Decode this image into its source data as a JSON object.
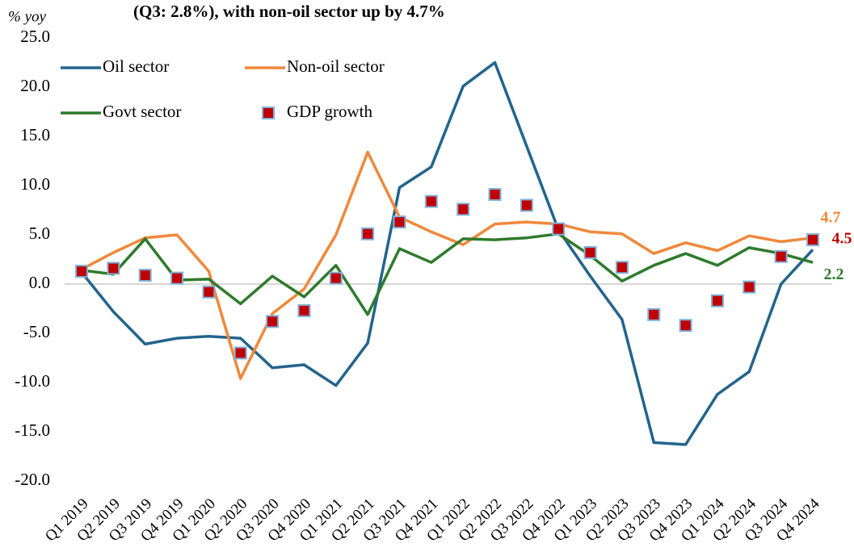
{
  "chart_data": {
    "type": "line",
    "title": "(Q3: 2.8%), with non-oil sector up by 4.7%",
    "y_label": "% yoy",
    "categories": [
      "Q1 2019",
      "Q2 2019",
      "Q3 2019",
      "Q4 2019",
      "Q1 2020",
      "Q2 2020",
      "Q3 2020",
      "Q4 2020",
      "Q1 2021",
      "Q2 2021",
      "Q3 2021",
      "Q4 2021",
      "Q1 2022",
      "Q2 2022",
      "Q3 2022",
      "Q4 2022",
      "Q1 2023",
      "Q2 2023",
      "Q3 2023",
      "Q4 2023",
      "Q1 2024",
      "Q2 2024",
      "Q3 2024",
      "Q4 2024"
    ],
    "series": [
      {
        "name": "Oil sector",
        "color": "#22648c",
        "kind": "line",
        "values": [
          1.2,
          -2.8,
          -6.1,
          -5.5,
          -5.3,
          -5.5,
          -8.5,
          -8.2,
          -10.3,
          -6.0,
          9.8,
          11.9,
          20.1,
          22.5,
          14.0,
          5.5,
          0.8,
          -3.6,
          -16.1,
          -16.3,
          -11.2,
          -8.9,
          0.0,
          3.5
        ]
      },
      {
        "name": "Non-oil sector",
        "color": "#f0883a",
        "kind": "line",
        "values": [
          1.5,
          3.2,
          4.7,
          5.0,
          1.3,
          -9.6,
          -3.0,
          -0.5,
          5.0,
          13.4,
          6.8,
          5.3,
          4.0,
          6.1,
          6.3,
          6.1,
          5.3,
          5.1,
          3.1,
          4.2,
          3.4,
          4.9,
          4.3,
          4.7
        ],
        "value_labels": [
          null,
          null,
          null,
          null,
          null,
          null,
          null,
          null,
          null,
          null,
          null,
          null,
          null,
          null,
          null,
          null,
          null,
          null,
          null,
          null,
          null,
          null,
          null,
          "4.7"
        ]
      },
      {
        "name": "Govt sector",
        "color": "#2e7a2c",
        "kind": "line",
        "values": [
          1.4,
          1.0,
          4.6,
          0.4,
          0.5,
          -2.0,
          0.8,
          -1.3,
          1.9,
          -3.1,
          3.6,
          2.2,
          4.6,
          4.5,
          4.7,
          5.1,
          2.9,
          0.3,
          1.9,
          3.1,
          1.9,
          3.7,
          3.1,
          2.2
        ],
        "value_labels": [
          null,
          null,
          null,
          null,
          null,
          null,
          null,
          null,
          null,
          null,
          null,
          null,
          null,
          null,
          null,
          null,
          null,
          null,
          null,
          null,
          null,
          null,
          null,
          "2.2"
        ]
      },
      {
        "name": "GDP growth",
        "color": "#c00000",
        "kind": "marker",
        "values": [
          1.3,
          1.6,
          0.9,
          0.6,
          -0.8,
          -7.0,
          -3.8,
          -2.7,
          0.6,
          5.1,
          6.3,
          8.4,
          7.6,
          9.1,
          8.0,
          5.6,
          3.2,
          1.7,
          -3.1,
          -4.2,
          -1.7,
          -0.3,
          2.8,
          4.5
        ],
        "value_labels": [
          null,
          null,
          null,
          null,
          null,
          null,
          null,
          null,
          null,
          null,
          null,
          null,
          null,
          null,
          null,
          null,
          null,
          null,
          null,
          null,
          null,
          null,
          null,
          "4.5"
        ]
      }
    ],
    "ylim": [
      -20,
      25
    ],
    "yticks": [
      {
        "value": -20,
        "label": "-20.0"
      },
      {
        "value": -15,
        "label": "-15.0"
      },
      {
        "value": -10,
        "label": "-10.0"
      },
      {
        "value": -5,
        "label": "-5.0"
      },
      {
        "value": 0,
        "label": "0.0"
      },
      {
        "value": 5,
        "label": "5.0"
      },
      {
        "value": 10,
        "label": "10.0"
      },
      {
        "value": 15,
        "label": "15.0"
      },
      {
        "value": 20,
        "label": "20.0"
      },
      {
        "value": 25,
        "label": "25.0"
      }
    ],
    "grid": false,
    "legend": "upper left"
  }
}
